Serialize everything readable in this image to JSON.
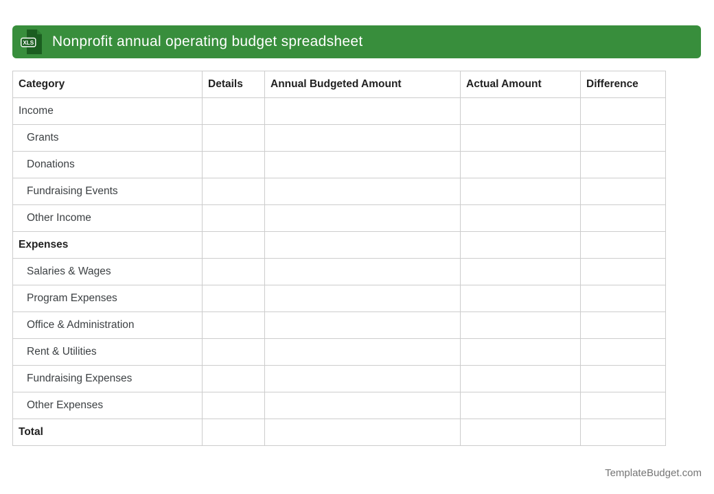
{
  "header": {
    "title": "Nonprofit annual operating budget spreadsheet",
    "icon_label": "XLS"
  },
  "table": {
    "columns": [
      {
        "label": "Category",
        "key": "category"
      },
      {
        "label": "Details",
        "key": "details"
      },
      {
        "label": "Annual Budgeted Amount",
        "key": "annual_budgeted_amount"
      },
      {
        "label": "Actual Amount",
        "key": "actual_amount"
      },
      {
        "label": "Difference",
        "key": "difference"
      }
    ],
    "rows": [
      {
        "category": "Income",
        "details": "",
        "annual_budgeted_amount": "",
        "actual_amount": "",
        "difference": "",
        "indent": false,
        "bold": false
      },
      {
        "category": "Grants",
        "details": "",
        "annual_budgeted_amount": "",
        "actual_amount": "",
        "difference": "",
        "indent": true,
        "bold": false
      },
      {
        "category": "Donations",
        "details": "",
        "annual_budgeted_amount": "",
        "actual_amount": "",
        "difference": "",
        "indent": true,
        "bold": false
      },
      {
        "category": "Fundraising Events",
        "details": "",
        "annual_budgeted_amount": "",
        "actual_amount": "",
        "difference": "",
        "indent": true,
        "bold": false
      },
      {
        "category": "Other Income",
        "details": "",
        "annual_budgeted_amount": "",
        "actual_amount": "",
        "difference": "",
        "indent": true,
        "bold": false
      },
      {
        "category": "Expenses",
        "details": "",
        "annual_budgeted_amount": "",
        "actual_amount": "",
        "difference": "",
        "indent": false,
        "bold": true
      },
      {
        "category": "Salaries & Wages",
        "details": "",
        "annual_budgeted_amount": "",
        "actual_amount": "",
        "difference": "",
        "indent": true,
        "bold": false
      },
      {
        "category": "Program Expenses",
        "details": "",
        "annual_budgeted_amount": "",
        "actual_amount": "",
        "difference": "",
        "indent": true,
        "bold": false
      },
      {
        "category": "Office & Administration",
        "details": "",
        "annual_budgeted_amount": "",
        "actual_amount": "",
        "difference": "",
        "indent": true,
        "bold": false
      },
      {
        "category": "Rent & Utilities",
        "details": "",
        "annual_budgeted_amount": "",
        "actual_amount": "",
        "difference": "",
        "indent": true,
        "bold": false
      },
      {
        "category": "Fundraising Expenses",
        "details": "",
        "annual_budgeted_amount": "",
        "actual_amount": "",
        "difference": "",
        "indent": true,
        "bold": false
      },
      {
        "category": "Other Expenses",
        "details": "",
        "annual_budgeted_amount": "",
        "actual_amount": "",
        "difference": "",
        "indent": true,
        "bold": false
      },
      {
        "category": "Total",
        "details": "",
        "annual_budgeted_amount": "",
        "actual_amount": "",
        "difference": "",
        "indent": false,
        "bold": true
      }
    ]
  },
  "footer": {
    "watermark": "TemplateBudget.com"
  },
  "colors": {
    "bar_green": "#388E3C",
    "icon_green": "#1B5E20",
    "icon_fold_green": "#2E7D32",
    "table_border": "#cccccc",
    "heading_text": "#212121",
    "body_text": "#3c4043",
    "title_text": "#ffffff",
    "watermark_text": "#757575"
  }
}
